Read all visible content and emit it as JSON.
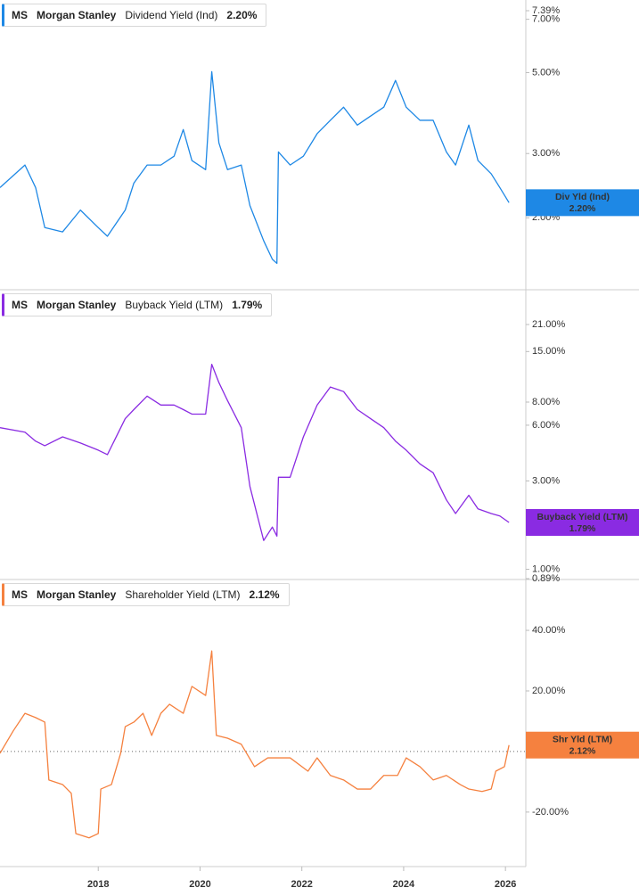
{
  "chart_data": [
    {
      "type": "line",
      "ticker": "MS",
      "company": "Morgan Stanley",
      "log_scale": true,
      "xlim": [
        2016.07,
        2026.4
      ],
      "ylim": [
        1.27,
        7.39
      ],
      "yticks": [
        {
          "value": 2,
          "label": "2.00%"
        },
        {
          "value": 3,
          "label": "3.00%"
        },
        {
          "value": 5,
          "label": "5.00%"
        },
        {
          "value": 7,
          "label": "7.00%"
        },
        {
          "value": 7.39,
          "label": "7.39%"
        }
      ],
      "x": [
        2016.07,
        2016.56,
        2016.77,
        2016.95,
        2017.3,
        2017.65,
        2018.0,
        2018.18,
        2018.53,
        2018.7,
        2018.96,
        2019.23,
        2019.49,
        2019.67,
        2019.84,
        2020.11,
        2020.23,
        2020.37,
        2020.54,
        2020.81,
        2020.98,
        2021.25,
        2021.42,
        2021.51,
        2021.54,
        2021.77,
        2022.03,
        2022.3,
        2022.56,
        2022.82,
        2023.09,
        2023.35,
        2023.61,
        2023.84,
        2024.05,
        2024.32,
        2024.58,
        2024.84,
        2025.02,
        2025.28,
        2025.46,
        2025.72,
        2025.89,
        2026.07
      ],
      "series": [
        {
          "name": "Dividend Yield (Ind)",
          "short_name": "Div Yld (Ind)",
          "color": "#1e88e5",
          "values": [
            2.42,
            2.79,
            2.42,
            1.88,
            1.83,
            2.1,
            1.88,
            1.78,
            2.1,
            2.49,
            2.79,
            2.79,
            2.95,
            3.49,
            2.87,
            2.71,
            5.03,
            3.21,
            2.71,
            2.79,
            2.16,
            1.73,
            1.54,
            1.5,
            3.03,
            2.79,
            2.95,
            3.4,
            3.7,
            4.02,
            3.59,
            3.8,
            4.02,
            4.76,
            4.02,
            3.7,
            3.7,
            3.03,
            2.79,
            3.59,
            2.87,
            2.64,
            2.42,
            2.2
          ],
          "current": {
            "value": 2.2,
            "label": "2.20%"
          }
        }
      ]
    },
    {
      "type": "line",
      "ticker": "MS",
      "company": "Morgan Stanley",
      "log_scale": true,
      "xlim": [
        2016.07,
        2026.4
      ],
      "ylim": [
        0.89,
        32
      ],
      "yticks": [
        {
          "value": 0.89,
          "label": "0.89%"
        },
        {
          "value": 1,
          "label": "1.00%"
        },
        {
          "value": 3,
          "label": "3.00%"
        },
        {
          "value": 6,
          "label": "6.00%"
        },
        {
          "value": 8,
          "label": "8.00%"
        },
        {
          "value": 15,
          "label": "15.00%"
        },
        {
          "value": 21,
          "label": "21.00%"
        }
      ],
      "x": [
        2016.07,
        2016.56,
        2016.77,
        2016.95,
        2017.3,
        2017.65,
        2018.0,
        2018.18,
        2018.53,
        2018.7,
        2018.96,
        2019.23,
        2019.49,
        2019.67,
        2019.84,
        2020.11,
        2020.23,
        2020.37,
        2020.54,
        2020.81,
        2020.98,
        2021.25,
        2021.42,
        2021.51,
        2021.54,
        2021.77,
        2022.03,
        2022.3,
        2022.56,
        2022.82,
        2023.09,
        2023.35,
        2023.61,
        2023.84,
        2024.05,
        2024.32,
        2024.58,
        2024.84,
        2025.02,
        2025.28,
        2025.46,
        2025.72,
        2025.89,
        2026.07
      ],
      "series": [
        {
          "name": "Buyback Yield (LTM)",
          "short_name": "Buyback Yield (LTM)",
          "color": "#8a2be2",
          "values": [
            5.82,
            5.5,
            4.92,
            4.65,
            5.19,
            4.81,
            4.4,
            4.16,
            6.51,
            7.29,
            8.62,
            7.71,
            7.71,
            7.29,
            6.89,
            6.89,
            12.8,
            10.2,
            8.15,
            5.82,
            2.8,
            1.43,
            1.69,
            1.51,
            3.14,
            3.14,
            5.19,
            7.71,
            9.65,
            9.12,
            7.29,
            6.51,
            5.82,
            4.92,
            4.4,
            3.71,
            3.32,
            2.37,
            2.0,
            2.51,
            2.12,
            2.0,
            1.94,
            1.79
          ],
          "current": {
            "value": 1.79,
            "label": "1.79%"
          }
        }
      ]
    },
    {
      "type": "line",
      "ticker": "MS",
      "company": "Morgan Stanley",
      "log_scale": false,
      "zero_line": true,
      "xlim": [
        2016.07,
        2026.4
      ],
      "ylim": [
        -38,
        56.5
      ],
      "xticks": [
        2018,
        2020,
        2022,
        2024,
        2026
      ],
      "yticks": [
        {
          "value": -20,
          "label": "-20.00%"
        },
        {
          "value": 0,
          "label": "0.00%"
        },
        {
          "value": 20,
          "label": "20.00%"
        },
        {
          "value": 40,
          "label": "40.00%"
        }
      ],
      "x": [
        2016.07,
        2016.33,
        2016.56,
        2016.77,
        2016.95,
        2017.03,
        2017.3,
        2017.47,
        2017.56,
        2017.82,
        2018.0,
        2018.05,
        2018.26,
        2018.44,
        2018.53,
        2018.7,
        2018.88,
        2019.05,
        2019.23,
        2019.4,
        2019.67,
        2019.84,
        2020.11,
        2020.23,
        2020.32,
        2020.54,
        2020.81,
        2021.07,
        2021.33,
        2021.77,
        2022.12,
        2022.3,
        2022.56,
        2022.82,
        2023.09,
        2023.35,
        2023.61,
        2023.88,
        2024.05,
        2024.32,
        2024.58,
        2024.84,
        2025.11,
        2025.28,
        2025.54,
        2025.72,
        2025.81,
        2025.98,
        2026.07
      ],
      "series": [
        {
          "name": "Shareholder Yield (LTM)",
          "short_name": "Shr Yld (LTM)",
          "color": "#f5813f",
          "values": [
            -0.6,
            6.8,
            12.6,
            11.2,
            9.7,
            -9.4,
            -10.9,
            -13.8,
            -27.1,
            -28.5,
            -27.1,
            -12.4,
            -10.9,
            -0.6,
            8.2,
            9.7,
            12.6,
            5.3,
            12.6,
            15.6,
            12.6,
            21.5,
            18.5,
            33.2,
            5.3,
            4.4,
            2.4,
            -5.0,
            -2.1,
            -2.1,
            -6.5,
            -2.1,
            -7.9,
            -9.4,
            -12.4,
            -12.4,
            -7.9,
            -7.9,
            -2.1,
            -5.0,
            -9.4,
            -7.9,
            -10.9,
            -12.4,
            -13.2,
            -12.4,
            -6.5,
            -5.0,
            2.12
          ],
          "current": {
            "value": 2.12,
            "label": "2.12%"
          }
        }
      ]
    }
  ]
}
